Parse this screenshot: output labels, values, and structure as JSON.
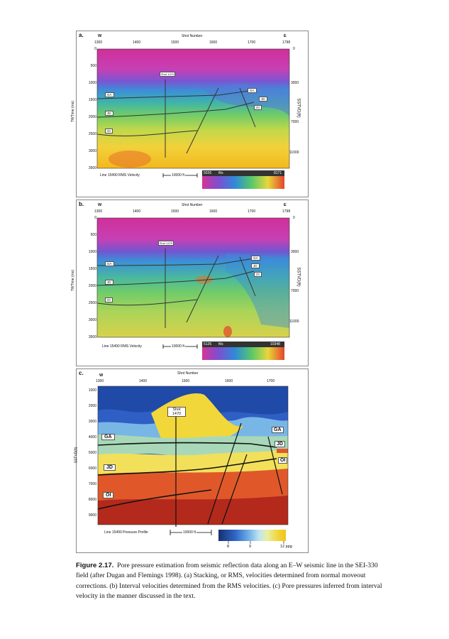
{
  "panels": [
    {
      "label": "a.",
      "west": "W",
      "east": "E",
      "shot_axis_title": "Shot Number",
      "shot_ticks": [
        "1300",
        "1400",
        "1500",
        "1600",
        "1700",
        "1798"
      ],
      "twt_ticks": [
        "0",
        "500",
        "1000",
        "1500",
        "2000",
        "2500",
        "3000",
        "3500"
      ],
      "left_axis_title": "TWTime (ms)",
      "right_axis_title": "SSTVD(ft)",
      "right_ticks": [
        "0",
        "3000",
        "7000",
        "11000"
      ],
      "horizons": [
        "GA",
        "JD",
        "OI"
      ],
      "horizons_right": [
        "GA",
        "JD",
        "OI"
      ],
      "shot_label": "Shot 1470",
      "line_label": "Line 15490 RMS Velocity",
      "scale_label": "10000 ft",
      "colorbar_min": "5026",
      "colorbar_unit": "ft/s",
      "colorbar_max": "8171"
    },
    {
      "label": "b.",
      "west": "W",
      "east": "E",
      "shot_axis_title": "Shot Number",
      "shot_ticks": [
        "1300",
        "1400",
        "1500",
        "1600",
        "1700",
        "1798"
      ],
      "twt_ticks": [
        "0",
        "500",
        "1000",
        "1500",
        "2000",
        "2500",
        "3000",
        "3500"
      ],
      "left_axis_title": "TWTime (ms)",
      "right_axis_title": "SSTVD(ft)",
      "right_ticks": [
        "0",
        "3000",
        "7000",
        "11000"
      ],
      "horizons": [
        "GA",
        "JD",
        "OI"
      ],
      "horizons_right": [
        "GA",
        "JD",
        "OI"
      ],
      "shot_label": "Shot 1470",
      "line_label": "Line 15490 RMS Velocity",
      "scale_label": "10000 ft",
      "colorbar_min": "5126",
      "colorbar_unit": "ft/s",
      "colorbar_max": "10348"
    },
    {
      "label": "c.",
      "west": "W",
      "shot_axis_title": "Shot Number",
      "shot_ticks": [
        "1300",
        "1400",
        "1500",
        "1600",
        "1700"
      ],
      "depth_ticks": [
        "1000",
        "2000",
        "3000",
        "4000",
        "5000",
        "6000",
        "7000",
        "8000",
        "9000"
      ],
      "left_axis_title": "SSTVD(ft)",
      "horizons": [
        "GA",
        "JD",
        "OI"
      ],
      "horizons_right": [
        "GA",
        "JD",
        "OI"
      ],
      "shot_label_1": "Shot",
      "shot_label_2": "1470",
      "line_label": "Line 15490 Pressure Profile",
      "scale_label": "10000 ft",
      "colorbar_ticks": [
        "8",
        "9",
        "12 ppg"
      ]
    }
  ],
  "caption": {
    "figure_number": "Figure 2.17.",
    "text": "Pore pressure estimation from seismic reflection data along an E–W seismic line in the SEI-330 field (after Dugan and Flemings 1998). (a) Stacking, or RMS, velocities determined from normal moveout corrections. (b) Interval velocities determined from the RMS velocities. (c) Pore pressures inferred from interval velocity in the manner discussed in the text."
  },
  "colors": {
    "velocity_top": "#d0309a",
    "velocity_mid": "#3c8fd8",
    "velocity_green": "#6fcb6a",
    "velocity_bottom": "#f2b91e",
    "pressure_low": "#1e4fb8",
    "pressure_high": "#b3291c"
  }
}
